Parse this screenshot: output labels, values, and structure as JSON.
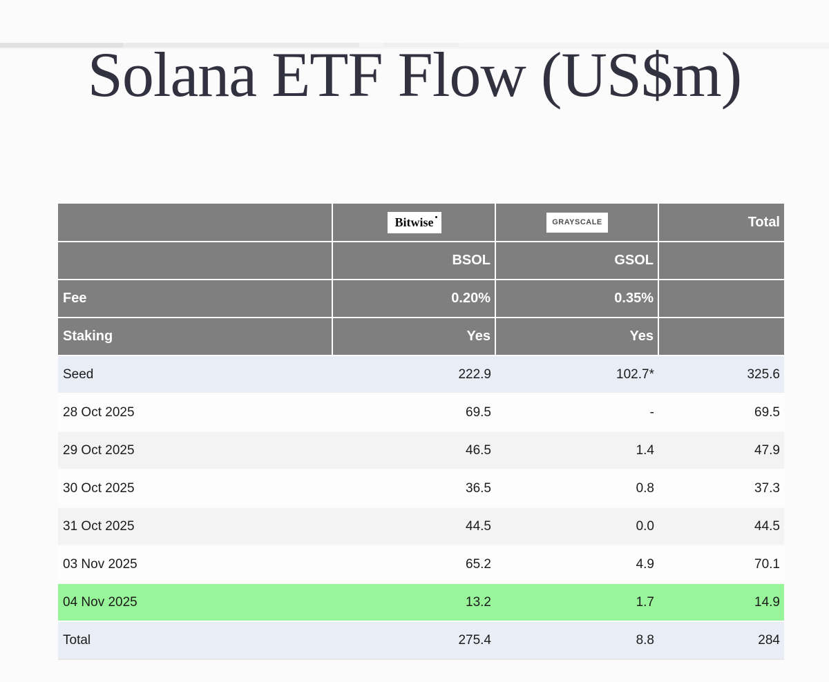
{
  "chart_data": {
    "type": "table",
    "title": "Solana ETF Flow (US$m)",
    "columns": {
      "bitwise": {
        "logo": "Bitwise",
        "ticker": "BSOL"
      },
      "grayscale": {
        "logo": "GRAYSCALE",
        "ticker": "GSOL"
      },
      "total": {
        "label": "Total"
      }
    },
    "meta_rows": [
      {
        "label": "Fee",
        "bsol": "0.20%",
        "gsol": "0.35%",
        "total": ""
      },
      {
        "label": "Staking",
        "bsol": "Yes",
        "gsol": "Yes",
        "total": ""
      }
    ],
    "rows": [
      {
        "label": "Seed",
        "bsol": "222.9",
        "gsol": "102.7*",
        "total": "325.6",
        "highlight": "lavender"
      },
      {
        "label": "28 Oct 2025",
        "bsol": "69.5",
        "gsol": "-",
        "total": "69.5",
        "highlight": "white"
      },
      {
        "label": "29 Oct 2025",
        "bsol": "46.5",
        "gsol": "1.4",
        "total": "47.9",
        "highlight": "zebra"
      },
      {
        "label": "30 Oct 2025",
        "bsol": "36.5",
        "gsol": "0.8",
        "total": "37.3",
        "highlight": "white"
      },
      {
        "label": "31 Oct 2025",
        "bsol": "44.5",
        "gsol": "0.0",
        "total": "44.5",
        "highlight": "zebra"
      },
      {
        "label": "03 Nov 2025",
        "bsol": "65.2",
        "gsol": "4.9",
        "total": "70.1",
        "highlight": "white"
      },
      {
        "label": "04 Nov 2025",
        "bsol": "13.2",
        "gsol": "1.7",
        "total": "14.9",
        "highlight": "green"
      },
      {
        "label": "Total",
        "bsol": "275.4",
        "gsol": "8.8",
        "total": "284",
        "highlight": "lavender"
      }
    ],
    "colors": {
      "header_bg": "#7f7f7f",
      "header_text": "#ffffff",
      "lavender_row": "#e9edf6",
      "green_row": "#98f59a",
      "zebra_row": "#f3f3f3",
      "title_text": "#31313f"
    }
  }
}
